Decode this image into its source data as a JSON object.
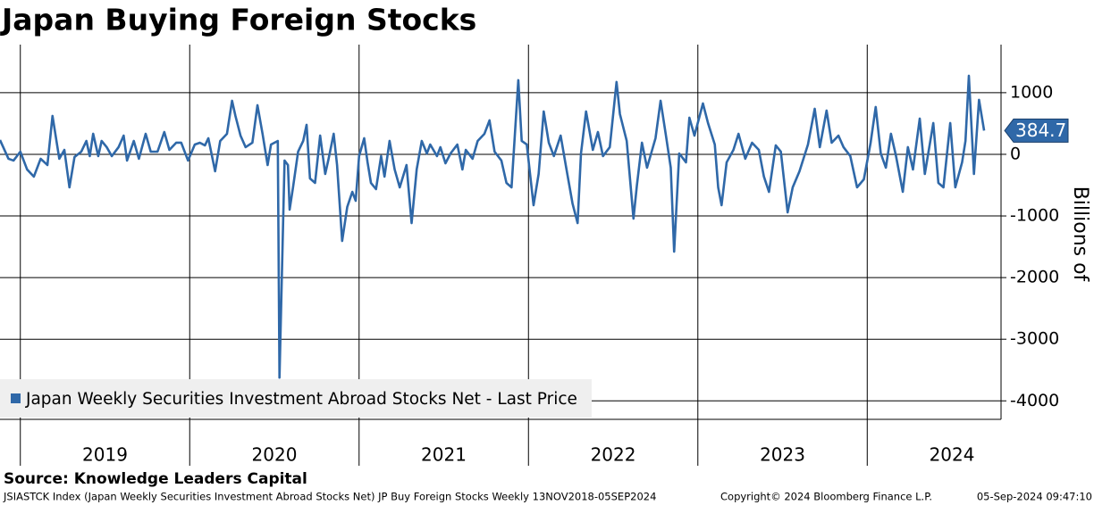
{
  "chart_data": {
    "type": "line",
    "title": "Japan Buying Foreign Stocks",
    "y_label": "Billions of",
    "legend_label": "Japan Weekly Securities Investment Abroad Stocks Net - Last Price",
    "source": "Source: Knowledge Leaders Capital",
    "footer_left": "JSIASTCK Index (Japan Weekly Securities Investment Abroad Stocks Net) JP Buy Foreign Stocks  Weekly 13NOV2018-05SEP2024",
    "footer_center": "Copyright© 2024 Bloomberg Finance L.P.",
    "footer_right": "05-Sep-2024 09:47:10",
    "xlim": [
      2018.88,
      2024.79
    ],
    "xticks": [
      2019,
      2020,
      2021,
      2022,
      2023,
      2024
    ],
    "ylim": [
      -4300,
      1780
    ],
    "yticks": [
      1000,
      0,
      -1000,
      -2000,
      -3000,
      -4000
    ],
    "grid": true,
    "legend": "lower left",
    "x": [
      2018.88,
      2018.93,
      2018.96,
      2019.0,
      2019.04,
      2019.08,
      2019.12,
      2019.16,
      2019.19,
      2019.23,
      2019.26,
      2019.29,
      2019.32,
      2019.36,
      2019.39,
      2019.41,
      2019.43,
      2019.46,
      2019.48,
      2019.51,
      2019.54,
      2019.58,
      2019.61,
      2019.63,
      2019.67,
      2019.7,
      2019.74,
      2019.77,
      2019.81,
      2019.85,
      2019.88,
      2019.92,
      2019.95,
      2019.99,
      2020.03,
      2020.06,
      2020.09,
      2020.11,
      2020.15,
      2020.18,
      2020.22,
      2020.25,
      2020.27,
      2020.3,
      2020.33,
      2020.37,
      2020.4,
      2020.43,
      2020.46,
      2020.48,
      2020.52,
      2020.53,
      2020.56,
      2020.58,
      2020.59,
      2020.61,
      2020.64,
      2020.67,
      2020.69,
      2020.71,
      2020.74,
      2020.77,
      2020.8,
      2020.82,
      2020.85,
      2020.87,
      2020.9,
      2020.93,
      2020.96,
      2020.98,
      2021.0,
      2021.03,
      2021.05,
      2021.07,
      2021.1,
      2021.13,
      2021.15,
      2021.18,
      2021.21,
      2021.24,
      2021.28,
      2021.31,
      2021.34,
      2021.37,
      2021.4,
      2021.42,
      2021.46,
      2021.48,
      2021.51,
      2021.54,
      2021.58,
      2021.61,
      2021.63,
      2021.67,
      2021.7,
      2021.74,
      2021.77,
      2021.8,
      2021.84,
      2021.87,
      2021.9,
      2021.94,
      2021.96,
      2021.99,
      2022.03,
      2022.06,
      2022.09,
      2022.12,
      2022.15,
      2022.19,
      2022.22,
      2022.26,
      2022.29,
      2022.31,
      2022.34,
      2022.38,
      2022.41,
      2022.44,
      2022.48,
      2022.52,
      2022.54,
      2022.58,
      2022.62,
      2022.64,
      2022.67,
      2022.7,
      2022.75,
      2022.78,
      2022.81,
      2022.84,
      2022.86,
      2022.89,
      2022.93,
      2022.95,
      2022.98,
      2023.03,
      2023.06,
      2023.1,
      2023.12,
      2023.14,
      2023.17,
      2023.21,
      2023.24,
      2023.28,
      2023.32,
      2023.36,
      2023.39,
      2023.42,
      2023.46,
      2023.49,
      2023.53,
      2023.56,
      2023.6,
      2023.65,
      2023.69,
      2023.72,
      2023.76,
      2023.79,
      2023.83,
      2023.86,
      2023.9,
      2023.94,
      2023.98,
      2024.02,
      2024.05,
      2024.08,
      2024.11,
      2024.14,
      2024.17,
      2024.21,
      2024.24,
      2024.27,
      2024.31,
      2024.34,
      2024.39,
      2024.42,
      2024.45,
      2024.49,
      2024.52,
      2024.56,
      2024.58,
      2024.6,
      2024.63,
      2024.66,
      2024.69
    ],
    "series": [
      {
        "name": "Japan Weekly Securities Investment Abroad Stocks Net",
        "color": "#2f68a8",
        "values": [
          232,
          -72,
          -101,
          43,
          -246,
          -362,
          -72,
          -174,
          623,
          -72,
          72,
          -536,
          -43,
          43,
          217,
          -29,
          333,
          -29,
          217,
          116,
          -29,
          116,
          304,
          -101,
          217,
          -72,
          333,
          43,
          43,
          362,
          72,
          188,
          188,
          -101,
          159,
          188,
          145,
          261,
          -275,
          217,
          333,
          869,
          623,
          304,
          116,
          188,
          797,
          333,
          -174,
          159,
          217,
          -3623,
          -101,
          -174,
          -898,
          -536,
          43,
          217,
          478,
          -391,
          -464,
          304,
          -319,
          -72,
          333,
          -174,
          -1406,
          -855,
          -609,
          -753,
          -29,
          261,
          -130,
          -464,
          -565,
          -29,
          -362,
          217,
          -246,
          -536,
          -174,
          -1116,
          -246,
          217,
          14,
          159,
          -29,
          116,
          -145,
          14,
          159,
          -246,
          72,
          -72,
          217,
          333,
          551,
          43,
          -101,
          -464,
          -536,
          1203,
          217,
          159,
          -826,
          -319,
          696,
          188,
          -29,
          304,
          -174,
          -797,
          -1116,
          14,
          696,
          72,
          362,
          -29,
          116,
          1174,
          652,
          217,
          -1043,
          -507,
          188,
          -217,
          261,
          869,
          333,
          -217,
          -1579,
          14,
          -130,
          594,
          304,
          826,
          507,
          159,
          -536,
          -826,
          -130,
          72,
          333,
          -72,
          188,
          72,
          -362,
          -609,
          145,
          43,
          -942,
          -536,
          -275,
          159,
          739,
          116,
          710,
          188,
          304,
          116,
          -29,
          -536,
          -406,
          188,
          768,
          14,
          -217,
          333,
          -29,
          -609,
          116,
          -246,
          580,
          -319,
          507,
          -464,
          -536,
          507,
          -536,
          -130,
          217,
          1275,
          -319,
          884,
          384.7
        ]
      }
    ]
  }
}
